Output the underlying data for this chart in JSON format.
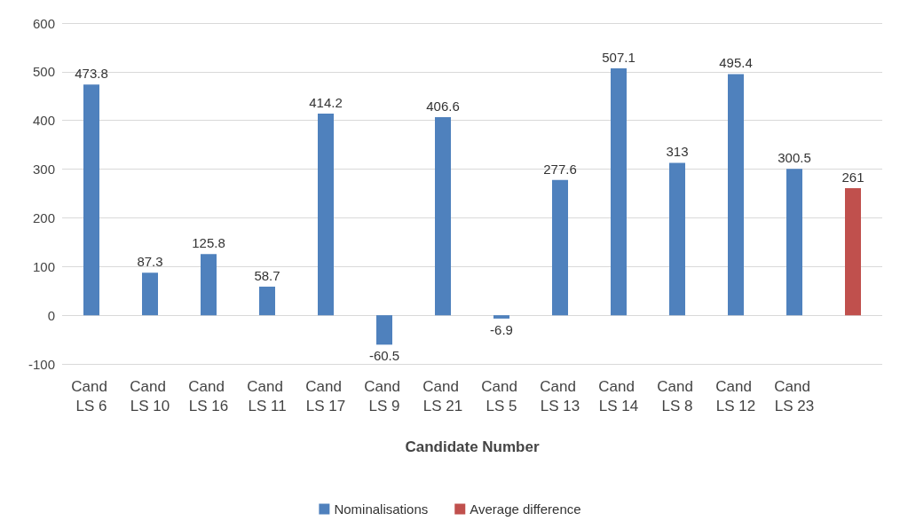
{
  "chart_data": {
    "type": "bar",
    "xlabel": "Candidate Number",
    "categories": [
      "Cand LS 6",
      "Cand LS 10",
      "Cand LS 16",
      "Cand LS 11",
      "Cand LS 17",
      "Cand LS 9",
      "Cand LS 21",
      "Cand LS 5",
      "Cand LS 13",
      "Cand LS 14",
      "Cand LS 8",
      "Cand LS 12",
      "Cand LS 23",
      null
    ],
    "series": [
      {
        "name": "Nominalisations",
        "color": "#4f81bd",
        "values": [
          473.8,
          87.3,
          125.8,
          58.7,
          414.2,
          -60.5,
          406.6,
          -6.9,
          277.6,
          507.1,
          313,
          495.4,
          300.5,
          null
        ]
      },
      {
        "name": "Average difference",
        "color": "#c0504d",
        "values": [
          null,
          null,
          null,
          null,
          null,
          null,
          null,
          null,
          null,
          null,
          null,
          null,
          null,
          261
        ]
      }
    ],
    "ylim": [
      -100,
      600
    ],
    "yticks": [
      -100,
      0,
      100,
      200,
      300,
      400,
      500,
      600
    ],
    "grid": "y",
    "legend": "bottom",
    "data_labels": true
  }
}
